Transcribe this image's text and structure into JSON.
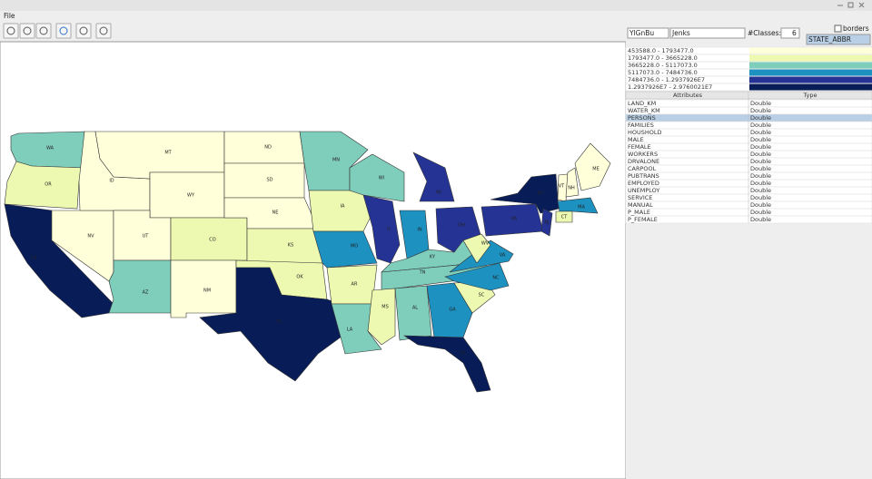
{
  "window": {
    "menu": [
      "File"
    ]
  },
  "controls": {
    "palette": "YlGnBu",
    "method": "Jenks",
    "classes_label": "#Classes:",
    "classes": 6,
    "borders_label": "borders",
    "field": "STATE_ABBR"
  },
  "legend": [
    {
      "range": "453588.0 - 1793477.0",
      "color": "#ffffd9"
    },
    {
      "range": "1793477.0 - 3665228.0",
      "color": "#edf8b1"
    },
    {
      "range": "3665228.0 - 5117073.0",
      "color": "#7fcdbb"
    },
    {
      "range": "5117073.0 - 7484736.0",
      "color": "#1d91c0"
    },
    {
      "range": "7484736.0 - 1.2937926E7",
      "color": "#253494"
    },
    {
      "range": "1.2937926E7 - 2.9760021E7",
      "color": "#081d58"
    }
  ],
  "attributes": {
    "columns": [
      "Attributes",
      "Type"
    ],
    "selected": 2,
    "rows": [
      [
        "LAND_KM",
        "Double"
      ],
      [
        "WATER_KM",
        "Double"
      ],
      [
        "PERSONS",
        "Double"
      ],
      [
        "FAMILIES",
        "Double"
      ],
      [
        "HOUSHOLD",
        "Double"
      ],
      [
        "MALE",
        "Double"
      ],
      [
        "FEMALE",
        "Double"
      ],
      [
        "WORKERS",
        "Double"
      ],
      [
        "DRVALONE",
        "Double"
      ],
      [
        "CARPOOL",
        "Double"
      ],
      [
        "PUBTRANS",
        "Double"
      ],
      [
        "EMPLOYED",
        "Double"
      ],
      [
        "UNEMPLOY",
        "Double"
      ],
      [
        "SERVICE",
        "Double"
      ],
      [
        "MANUAL",
        "Double"
      ],
      [
        "P_MALE",
        "Double"
      ],
      [
        "P_FEMALE",
        "Double"
      ]
    ]
  },
  "map": {
    "states": [
      {
        "label": "WA",
        "color": "#7fcdbb"
      },
      {
        "label": "OR",
        "color": "#edf8b1"
      },
      {
        "label": "CA",
        "color": "#081d58"
      },
      {
        "label": "NV",
        "color": "#ffffd9"
      },
      {
        "label": "ID",
        "color": "#ffffd9"
      },
      {
        "label": "MT",
        "color": "#ffffd9"
      },
      {
        "label": "WY",
        "color": "#ffffd9"
      },
      {
        "label": "UT",
        "color": "#ffffd9"
      },
      {
        "label": "CO",
        "color": "#edf8b1"
      },
      {
        "label": "AZ",
        "color": "#7fcdbb"
      },
      {
        "label": "NM",
        "color": "#ffffd9"
      },
      {
        "label": "ND",
        "color": "#ffffd9"
      },
      {
        "label": "SD",
        "color": "#ffffd9"
      },
      {
        "label": "NE",
        "color": "#ffffd9"
      },
      {
        "label": "KS",
        "color": "#edf8b1"
      },
      {
        "label": "OK",
        "color": "#edf8b1"
      },
      {
        "label": "TX",
        "color": "#081d58"
      },
      {
        "label": "MN",
        "color": "#7fcdbb"
      },
      {
        "label": "IA",
        "color": "#edf8b1"
      },
      {
        "label": "MO",
        "color": "#1d91c0"
      },
      {
        "label": "AR",
        "color": "#edf8b1"
      },
      {
        "label": "LA",
        "color": "#7fcdbb"
      },
      {
        "label": "WI",
        "color": "#7fcdbb"
      },
      {
        "label": "IL",
        "color": "#253494"
      },
      {
        "label": "MI",
        "color": "#253494"
      },
      {
        "label": "IN",
        "color": "#1d91c0"
      },
      {
        "label": "OH",
        "color": "#253494"
      },
      {
        "label": "KY",
        "color": "#7fcdbb"
      },
      {
        "label": "TN",
        "color": "#7fcdbb"
      },
      {
        "label": "MS",
        "color": "#edf8b1"
      },
      {
        "label": "AL",
        "color": "#7fcdbb"
      },
      {
        "label": "GA",
        "color": "#1d91c0"
      },
      {
        "label": "FL",
        "color": "#081d58"
      },
      {
        "label": "SC",
        "color": "#edf8b1"
      },
      {
        "label": "NC",
        "color": "#1d91c0"
      },
      {
        "label": "VA",
        "color": "#1d91c0"
      },
      {
        "label": "WV",
        "color": "#edf8b1"
      },
      {
        "label": "PA",
        "color": "#253494"
      },
      {
        "label": "NY",
        "color": "#081d58"
      },
      {
        "label": "NJ",
        "color": "#253494"
      },
      {
        "label": "VT",
        "color": "#ffffd9"
      },
      {
        "label": "NH",
        "color": "#ffffd9"
      },
      {
        "label": "ME",
        "color": "#ffffd9"
      },
      {
        "label": "MA",
        "color": "#1d91c0"
      },
      {
        "label": "CT",
        "color": "#edf8b1"
      }
    ]
  }
}
